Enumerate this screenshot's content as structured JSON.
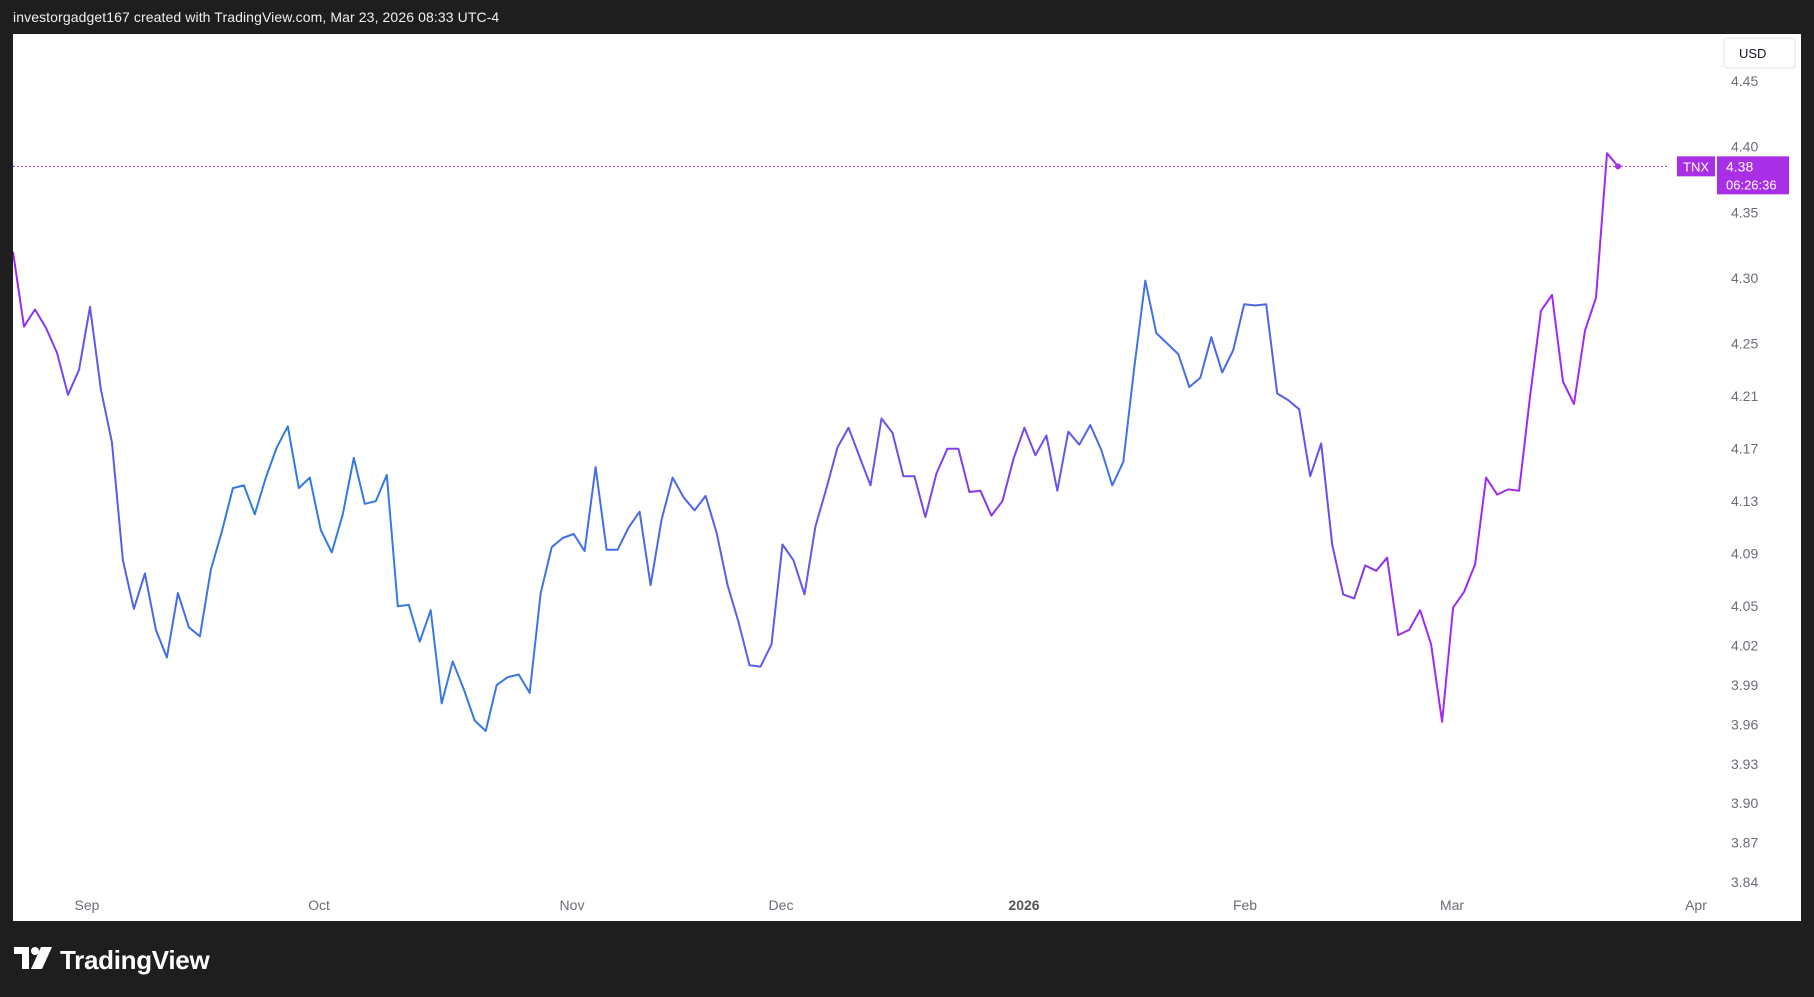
{
  "header": {
    "text": "investorgadget167 created with TradingView.com, Mar 23, 2026 08:33 UTC-4"
  },
  "branding": {
    "logo_text": "TradingView",
    "logo_icon": "tradingview-logo-icon"
  },
  "colors": {
    "line_start": "#2f7de1",
    "line_end": "#9c27f0",
    "price_badge": "#a92fe6",
    "price_line": "#a92fe6",
    "axis_text": "#6a6d78"
  },
  "chart_data": {
    "type": "line",
    "title": "",
    "series": [
      {
        "name": "TNX",
        "values": [
          4.32,
          4.263,
          4.276,
          4.262,
          4.243,
          4.211,
          4.23,
          4.278,
          4.215,
          4.175,
          4.085,
          4.048,
          4.075,
          4.032,
          4.011,
          4.06,
          4.034,
          4.027,
          4.078,
          4.107,
          4.14,
          4.142,
          4.12,
          4.148,
          4.171,
          4.187,
          4.14,
          4.148,
          4.108,
          4.091,
          4.12,
          4.163,
          4.128,
          4.13,
          4.15,
          4.05,
          4.051,
          4.023,
          4.047,
          3.976,
          4.008,
          3.987,
          3.963,
          3.955,
          3.99,
          3.996,
          3.998,
          3.984,
          4.06,
          4.095,
          4.102,
          4.105,
          4.092,
          4.156,
          4.093,
          4.093,
          4.11,
          4.122,
          4.066,
          4.116,
          4.148,
          4.133,
          4.123,
          4.134,
          4.106,
          4.066,
          4.038,
          4.005,
          4.004,
          4.021,
          4.097,
          4.085,
          4.059,
          4.111,
          4.14,
          4.171,
          4.186,
          4.164,
          4.142,
          4.193,
          4.182,
          4.149,
          4.149,
          4.118,
          4.151,
          4.17,
          4.17,
          4.137,
          4.138,
          4.119,
          4.13,
          4.162,
          4.186,
          4.165,
          4.18,
          4.138,
          4.183,
          4.173,
          4.188,
          4.169,
          4.142,
          4.16,
          4.232,
          4.298,
          4.258,
          4.25,
          4.242,
          4.217,
          4.224,
          4.255,
          4.228,
          4.245,
          4.28,
          4.279,
          4.28,
          4.212,
          4.207,
          4.2,
          4.149,
          4.174,
          4.097,
          4.059,
          4.056,
          4.081,
          4.077,
          4.087,
          4.028,
          4.032,
          4.047,
          4.021,
          3.962,
          4.049,
          4.061,
          4.082,
          4.148,
          4.135,
          4.139,
          4.138,
          4.21,
          4.275,
          4.287,
          4.221,
          4.204,
          4.26,
          4.285,
          4.395,
          4.385
        ]
      }
    ],
    "last_value": {
      "label": "TNX",
      "value": "4.38",
      "countdown": "06:26:36"
    },
    "y_axis": {
      "currency": "USD",
      "ticks": [
        "4.45",
        "4.40",
        "4.35",
        "4.30",
        "4.25",
        "4.21",
        "4.17",
        "4.13",
        "4.09",
        "4.05",
        "4.02",
        "3.99",
        "3.96",
        "3.93",
        "3.90",
        "3.87",
        "3.84"
      ],
      "ylim": [
        3.84,
        4.45
      ]
    },
    "x_axis": {
      "ticks": [
        {
          "label": "Sep",
          "bold": false
        },
        {
          "label": "Oct",
          "bold": false
        },
        {
          "label": "Nov",
          "bold": false
        },
        {
          "label": "Dec",
          "bold": false
        },
        {
          "label": "2026",
          "bold": true
        },
        {
          "label": "Feb",
          "bold": false
        },
        {
          "label": "Mar",
          "bold": false
        },
        {
          "label": "Apr",
          "bold": false
        }
      ]
    },
    "grid": false,
    "legend": "none"
  }
}
